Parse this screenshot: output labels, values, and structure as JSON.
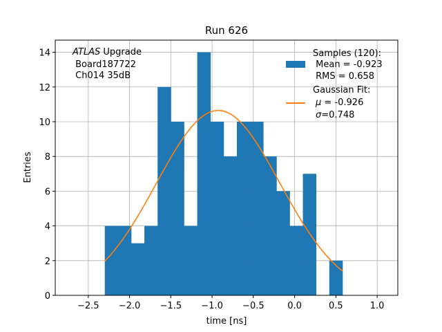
{
  "chart_data": {
    "type": "bar",
    "title": "Run 626",
    "xlabel": "time [ns]",
    "ylabel": "Entries",
    "xlim": [
      -2.9,
      1.25
    ],
    "ylim": [
      0,
      14.7
    ],
    "grid": true,
    "x_ticks": [
      -2.5,
      -2.0,
      -1.5,
      -1.0,
      -0.5,
      0.0,
      0.5,
      1.0
    ],
    "x_tick_labels": [
      "−2.5",
      "−2.0",
      "−1.5",
      "−1.0",
      "−0.5",
      "0.0",
      "0.5",
      "1.0"
    ],
    "y_ticks": [
      0,
      2,
      4,
      6,
      8,
      10,
      12,
      14
    ],
    "y_tick_labels": [
      "0",
      "2",
      "4",
      "6",
      "8",
      "10",
      "12",
      "14"
    ],
    "bin_edges": [
      -2.3,
      -2.14,
      -1.98,
      -1.82,
      -1.66,
      -1.5,
      -1.34,
      -1.18,
      -1.02,
      -0.86,
      -0.7,
      -0.54,
      -0.38,
      -0.22,
      -0.06,
      0.1,
      0.26,
      0.42,
      0.58
    ],
    "counts": [
      4,
      4,
      3,
      4,
      12,
      10,
      4,
      14,
      10,
      8,
      10,
      10,
      8,
      6,
      4,
      7,
      0,
      2
    ],
    "bar_color": "#1f77b4",
    "fit_color": "#ff7f0e",
    "fit": {
      "name": "Gaussian Fit",
      "mu": -0.926,
      "sigma": 0.748,
      "amplitude": 10.65,
      "x_range": [
        -2.3,
        0.58
      ]
    },
    "annotation": {
      "italic": "ATLAS",
      "line1_rest": " Upgrade",
      "line2": " Board187722",
      "line3": " Ch014 35dB"
    },
    "legend": {
      "position": "top-right",
      "samples_line1": "Samples (120):",
      "samples_line2": " Mean = -0.923",
      "samples_line3": " RMS = 0.658",
      "fit_line1": "Gaussian Fit:",
      "fit_mu_symbol": "μ",
      "fit_mu_value": " = -0.926",
      "fit_sigma_symbol": "σ",
      "fit_sigma_value": "=0.748"
    }
  }
}
